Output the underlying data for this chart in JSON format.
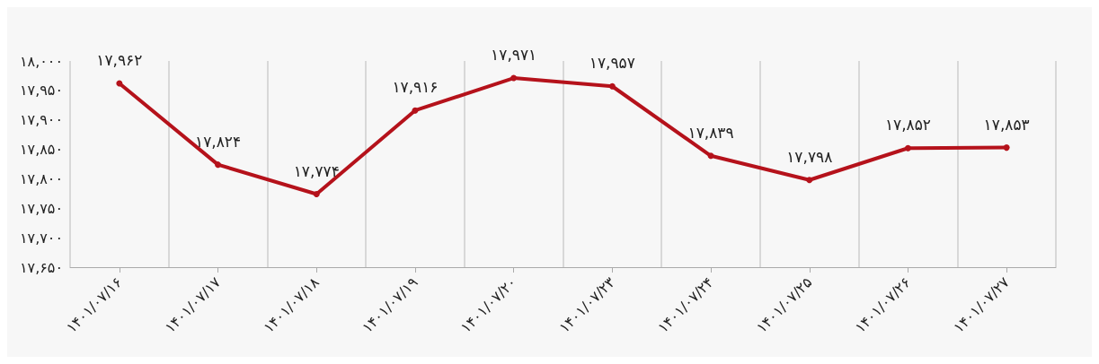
{
  "chart_data": {
    "type": "line",
    "categories": [
      "۱۴۰۱/۰۷/۱۶",
      "۱۴۰۱/۰۷/۱۷",
      "۱۴۰۱/۰۷/۱۸",
      "۱۴۰۱/۰۷/۱۹",
      "۱۴۰۱/۰۷/۲۰",
      "۱۴۰۱/۰۷/۲۳",
      "۱۴۰۱/۰۷/۲۴",
      "۱۴۰۱/۰۷/۲۵",
      "۱۴۰۱/۰۷/۲۶",
      "۱۴۰۱/۰۷/۲۷"
    ],
    "series": [
      {
        "color": "#b5121b",
        "values": [
          17962,
          17824,
          17774,
          17916,
          17971,
          17957,
          17839,
          17798,
          17852,
          17853
        ],
        "value_labels": [
          "۱۷,۹۶۲",
          "۱۷,۸۲۴",
          "۱۷,۷۷۴",
          "۱۷,۹۱۶",
          "۱۷,۹۷۱",
          "۱۷,۹۵۷",
          "۱۷,۸۳۹",
          "۱۷,۷۹۸",
          "۱۷,۸۵۲",
          "۱۷,۸۵۳"
        ]
      }
    ],
    "ylim": [
      17650,
      18000
    ],
    "yticks": [
      {
        "value": 17650,
        "label": "۱۷,۶۵۰"
      },
      {
        "value": 17700,
        "label": "۱۷,۷۰۰"
      },
      {
        "value": 17750,
        "label": "۱۷,۷۵۰"
      },
      {
        "value": 17800,
        "label": "۱۷,۸۰۰"
      },
      {
        "value": 17850,
        "label": "۱۷,۸۵۰"
      },
      {
        "value": 17900,
        "label": "۱۷,۹۰۰"
      },
      {
        "value": 17950,
        "label": "۱۷,۹۵۰"
      },
      {
        "value": 18000,
        "label": "۱۸,۰۰۰"
      }
    ],
    "grid": "x",
    "marker": "circle",
    "line_style": "solid"
  }
}
